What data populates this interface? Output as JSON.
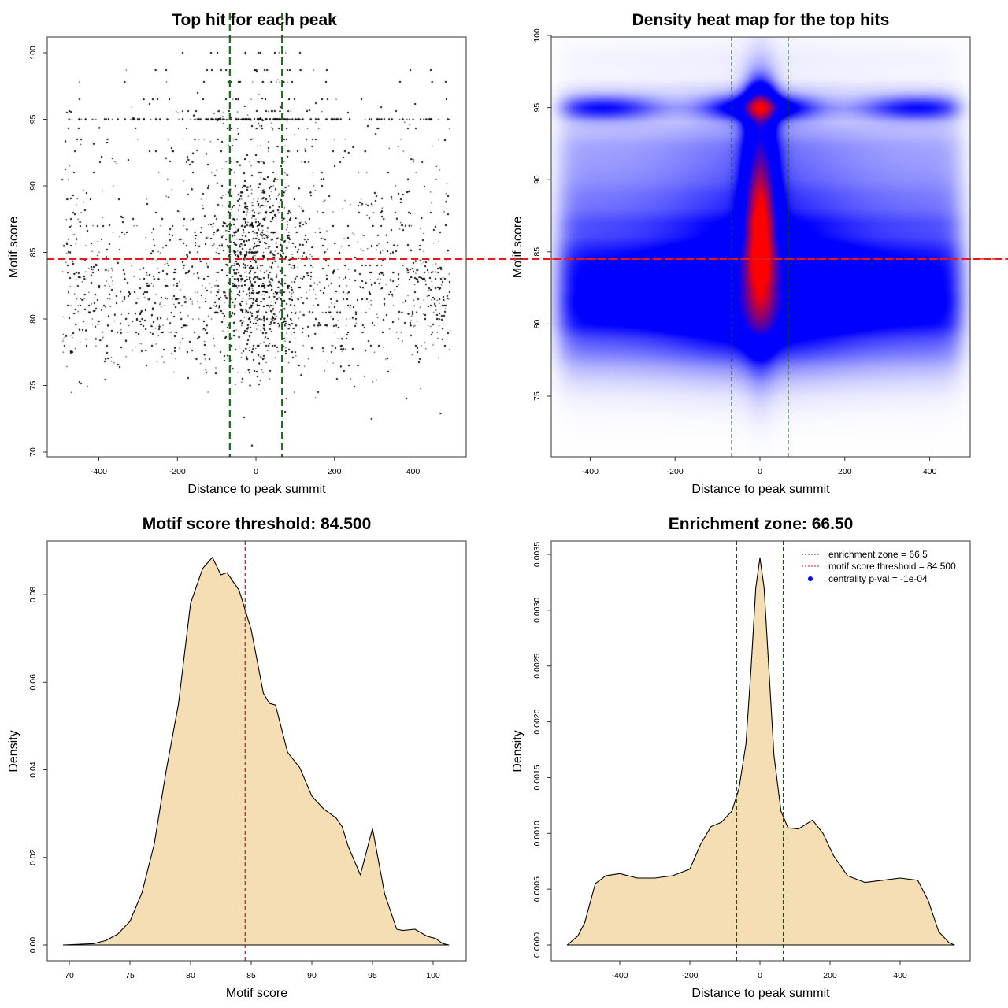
{
  "chart_data": [
    {
      "type": "scatter",
      "title": "Top hit for each peak",
      "xlabel": "Distance to peak summit",
      "ylabel": "Motif score",
      "xticks": [
        "-400",
        "-200",
        "0",
        "200",
        "400"
      ],
      "xtick_values": [
        -400,
        -200,
        0,
        200,
        400
      ],
      "yticks": [
        "70",
        "75",
        "80",
        "85",
        "90",
        "95",
        "100"
      ],
      "ytick_values": [
        70,
        75,
        80,
        85,
        90,
        95,
        100
      ],
      "xlim": [
        -500,
        500
      ],
      "ylim": [
        70,
        100
      ],
      "hlines": [
        {
          "y": 84.5,
          "color": "#e41a1c",
          "style": "dashed"
        }
      ],
      "vlines": [
        {
          "x": -66.5,
          "color": "#1a6b1a",
          "style": "dashed"
        },
        {
          "x": 66.5,
          "color": "#1a6b1a",
          "style": "dashed"
        }
      ],
      "point_color": "#000000"
    },
    {
      "type": "heatmap",
      "title": "Density heat map for the top hits",
      "xlabel": "Distance to peak summit",
      "ylabel": "Motif score",
      "xticks": [
        "-400",
        "-200",
        "0",
        "200",
        "400"
      ],
      "xtick_values": [
        -400,
        -200,
        0,
        200,
        400
      ],
      "yticks": [
        "75",
        "80",
        "85",
        "90",
        "95",
        "100"
      ],
      "ytick_values": [
        75,
        80,
        85,
        90,
        95,
        100
      ],
      "xlim": [
        -500,
        500
      ],
      "ylim": [
        70.8,
        100
      ],
      "colors": [
        "#ffffff",
        "#0000ff",
        "#ff0000"
      ],
      "hlines": [
        {
          "y": 84.5,
          "color": "#e41a1c",
          "style": "dashed"
        }
      ],
      "vlines": [
        {
          "x": -66.5,
          "color": "#1a4d1a",
          "style": "dashed"
        },
        {
          "x": 66.5,
          "color": "#1a4d1a",
          "style": "dashed"
        }
      ]
    },
    {
      "type": "area",
      "title": "Motif score threshold: 84.500",
      "xlabel": "Motif score",
      "ylabel": "Density",
      "xticks": [
        "70",
        "75",
        "80",
        "85",
        "90",
        "95",
        "100"
      ],
      "xtick_values": [
        70,
        75,
        80,
        85,
        90,
        95,
        100
      ],
      "yticks": [
        "0.00",
        "0.02",
        "0.04",
        "0.06",
        "0.08"
      ],
      "ytick_values": [
        0,
        0.02,
        0.04,
        0.06,
        0.08
      ],
      "fill": "#F5DEB3",
      "x": [
        69.5,
        72,
        73,
        74,
        75,
        76,
        77,
        78,
        79,
        80,
        81,
        81.8,
        82.5,
        83,
        84,
        85,
        86,
        86.5,
        87,
        88,
        89,
        90,
        91,
        92,
        92.5,
        93,
        94,
        95,
        96,
        97,
        97.5,
        98.5,
        99.5,
        100.2,
        100.8,
        101.3
      ],
      "y": [
        0,
        0.0003,
        0.001,
        0.0025,
        0.0054,
        0.012,
        0.023,
        0.04,
        0.055,
        0.078,
        0.086,
        0.0885,
        0.0845,
        0.085,
        0.081,
        0.072,
        0.0575,
        0.0552,
        0.0548,
        0.044,
        0.0405,
        0.034,
        0.031,
        0.029,
        0.027,
        0.0225,
        0.016,
        0.0266,
        0.0117,
        0.0036,
        0.0033,
        0.0036,
        0.002,
        0.0015,
        0.0003,
        0
      ],
      "vlines": [
        {
          "x": 84.5,
          "color": "#e41a1c",
          "style": "dashed"
        }
      ]
    },
    {
      "type": "area",
      "title": "Enrichment zone: 66.50",
      "xlabel": "Distance to peak summit",
      "ylabel": "Density",
      "xticks": [
        "-400",
        "-200",
        "0",
        "200",
        "400"
      ],
      "xtick_values": [
        -400,
        -200,
        0,
        200,
        400
      ],
      "yticks": [
        "0.0000",
        "0.0005",
        "0.0010",
        "0.0015",
        "0.0020",
        "0.0025",
        "0.0030",
        "0.0035"
      ],
      "ytick_values": [
        0,
        0.0005,
        0.001,
        0.0015,
        0.002,
        0.0025,
        0.003,
        0.0035
      ],
      "fill": "#F5DEB3",
      "x": [
        -550,
        -520,
        -500,
        -470,
        -440,
        -400,
        -350,
        -300,
        -250,
        -200,
        -170,
        -140,
        -110,
        -80,
        -60,
        -40,
        -25,
        -12,
        0,
        12,
        25,
        40,
        60,
        80,
        110,
        150,
        180,
        210,
        250,
        300,
        350,
        400,
        450,
        480,
        510,
        540,
        555
      ],
      "y": [
        0,
        8e-05,
        0.0002,
        0.00055,
        0.00062,
        0.00064,
        0.0006,
        0.0006,
        0.00062,
        0.00068,
        0.0009,
        0.00106,
        0.0011,
        0.0012,
        0.0014,
        0.0018,
        0.0025,
        0.0032,
        0.00347,
        0.0032,
        0.0025,
        0.0017,
        0.0012,
        0.00105,
        0.00104,
        0.00112,
        0.001,
        0.0008,
        0.00062,
        0.00056,
        0.00058,
        0.0006,
        0.00058,
        0.0004,
        0.00012,
        2e-05,
        0
      ],
      "vlines": [
        {
          "x": -66.5,
          "color": "#1a4d1a",
          "style": "dashed"
        },
        {
          "x": 66.5,
          "color": "#1a4d1a",
          "style": "dashed"
        }
      ],
      "legend": {
        "position": "top-right",
        "entries": [
          {
            "label": "enrichment zone = 66.5",
            "color": "#1a6b1a",
            "symbol": "dotted-line"
          },
          {
            "label": "motif score threshold = 84.500",
            "color": "#e41a1c",
            "symbol": "dotted-line"
          },
          {
            "label": "centrality p-val = -1e-04",
            "color": "#0000ff",
            "symbol": "dot"
          }
        ]
      }
    }
  ]
}
